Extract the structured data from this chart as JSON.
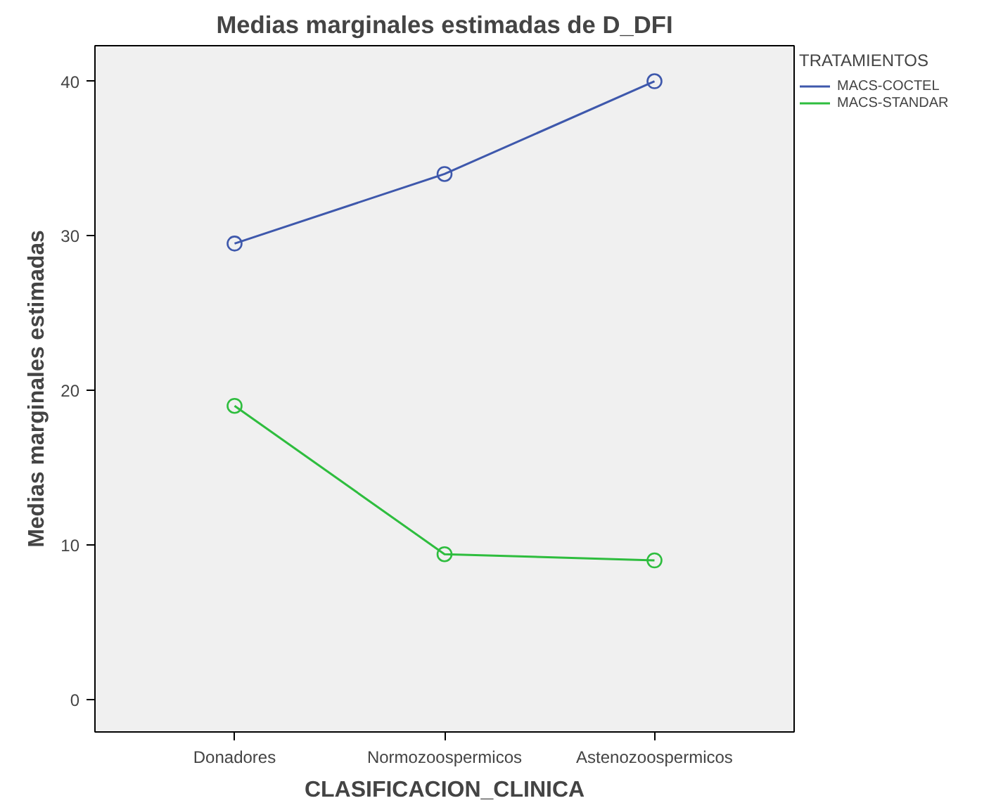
{
  "chart_data": {
    "type": "line",
    "title": "Medias marginales estimadas de D_DFI",
    "xlabel": "CLASIFICACION_CLINICA",
    "ylabel": "Medias marginales estimadas",
    "legend_title": "TRATAMIENTOS",
    "categories": [
      "Donadores",
      "Normozoospermicos",
      "Astenozoospermicos"
    ],
    "series": [
      {
        "name": "MACS-COCTEL",
        "color": "#3e58ac",
        "values": [
          29.5,
          34.0,
          40.0
        ]
      },
      {
        "name": "MACS-STANDAR",
        "color": "#2ebd3e",
        "values": [
          19.0,
          9.4,
          9.0
        ]
      }
    ],
    "ylim": [
      -2.1,
      42.3
    ],
    "yticks": [
      0,
      10,
      20,
      30,
      40
    ],
    "grid": false,
    "legend": "top right",
    "marker": "circle",
    "line_style": "solid"
  }
}
